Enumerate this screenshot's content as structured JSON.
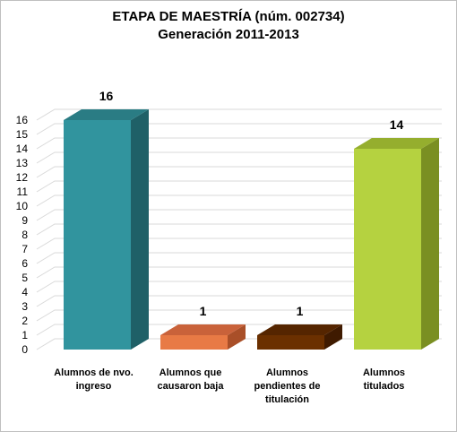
{
  "chart_data": {
    "type": "bar",
    "title": [
      "ETAPA DE MAESTRÍA (núm. 002734)",
      "Generación 2011-2013"
    ],
    "xlabel": "",
    "ylabel": "",
    "ylim": [
      0,
      16
    ],
    "yticks": [
      "0",
      "1",
      "2",
      "3",
      "4",
      "5",
      "6",
      "7",
      "8",
      "9",
      "10",
      "11",
      "12",
      "13",
      "14",
      "15",
      "16"
    ],
    "grid": true,
    "style": "3d-column",
    "categories": [
      [
        "Alumnos de nvo.",
        "ingreso"
      ],
      [
        "Alumnos que",
        "causaron baja"
      ],
      [
        "Alumnos",
        "pendientes de",
        "titulación"
      ],
      [
        "Alumnos",
        "titulados"
      ]
    ],
    "values": [
      16,
      1,
      1,
      14
    ],
    "data_labels": [
      "16",
      "1",
      "1",
      "14"
    ],
    "colors": [
      {
        "front": "#31949e",
        "side": "#1f6067",
        "top": "#2a7c84"
      },
      {
        "front": "#e87a45",
        "side": "#a94f28",
        "top": "#c9623a"
      },
      {
        "front": "#6b3000",
        "side": "#3f1a00",
        "top": "#552500"
      },
      {
        "front": "#b5d240",
        "side": "#7a8f22",
        "top": "#95ae2e"
      }
    ]
  }
}
